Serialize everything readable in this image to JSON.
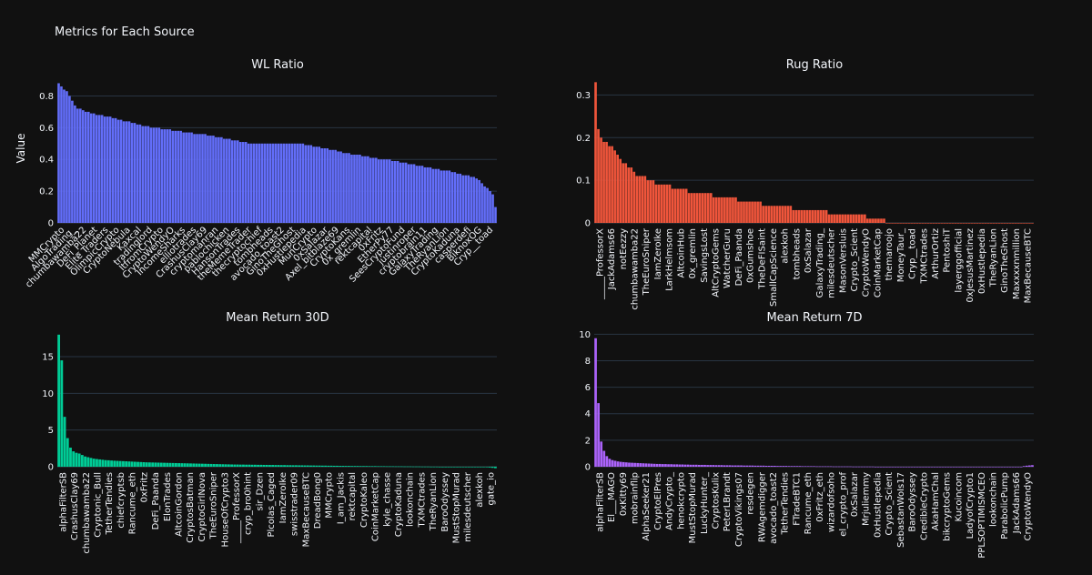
{
  "chart_data": {
    "title": "Metrics for Each Source",
    "ylabel": "Value",
    "panels": [
      {
        "type": "bar",
        "title": "WL Ratio",
        "color": "#636efa",
        "ylim": [
          0,
          0.9
        ],
        "yticks": [
          0,
          0.2,
          0.4,
          0.6,
          0.8
        ],
        "ytick_labels": [
          "0",
          "0.2",
          "0.4",
          "0.6",
          "0.8"
        ],
        "categories": [
          "MMCrypto",
          "AlgoTrading_",
          "chumbawamba22",
          "DeFi_Planet",
          "Elite Traders",
          "OlimpicCrypto",
          "CryptoNebula",
          "Kaxcal",
          "tradinglord",
          "ItfromCrypto",
          "CryptoWendyO",
          "IncomeSharks",
          "elliotrades",
          "CrashusClay69",
          "cryptomanran",
          "pablochicken",
          "HansonTrades",
          "theMemeTrader",
          "thecryptochief",
          "tombheads",
          "avocado_toast2",
          "GinoTheGhost",
          "0xHustlepedia",
          "MunCrypto",
          "0xSalazar",
          "Axel_bitblaze69",
          "CryptoKans",
          "0x_gremlin",
          "rektcapital",
          "0xFritz",
          "EtherPy77",
          "SeesCryptoFund",
          "justinroper",
          "cryptobrain11",
          "GalaxyTrading",
          "TheRyanLion",
          "CryptoKaduna",
          "casperdefi",
          "BiknoxOG",
          "Cryp__toad"
        ],
        "values": [
          0.88,
          0.86,
          0.84,
          0.83,
          0.8,
          0.77,
          0.74,
          0.72,
          0.72,
          0.71,
          0.7,
          0.7,
          0.69,
          0.69,
          0.68,
          0.68,
          0.68,
          0.67,
          0.67,
          0.67,
          0.66,
          0.66,
          0.65,
          0.65,
          0.64,
          0.64,
          0.64,
          0.63,
          0.63,
          0.62,
          0.62,
          0.61,
          0.61,
          0.61,
          0.6,
          0.6,
          0.6,
          0.6,
          0.59,
          0.59,
          0.59,
          0.59,
          0.58,
          0.58,
          0.58,
          0.58,
          0.57,
          0.57,
          0.57,
          0.57,
          0.56,
          0.56,
          0.56,
          0.56,
          0.56,
          0.55,
          0.55,
          0.55,
          0.54,
          0.54,
          0.54,
          0.53,
          0.53,
          0.53,
          0.52,
          0.52,
          0.52,
          0.51,
          0.51,
          0.51,
          0.5,
          0.5,
          0.5,
          0.5,
          0.5,
          0.5,
          0.5,
          0.5,
          0.5,
          0.5,
          0.5,
          0.5,
          0.5,
          0.5,
          0.5,
          0.5,
          0.5,
          0.5,
          0.5,
          0.5,
          0.5,
          0.49,
          0.49,
          0.49,
          0.48,
          0.48,
          0.48,
          0.47,
          0.47,
          0.47,
          0.46,
          0.46,
          0.46,
          0.45,
          0.45,
          0.44,
          0.44,
          0.44,
          0.43,
          0.43,
          0.43,
          0.43,
          0.42,
          0.42,
          0.42,
          0.41,
          0.41,
          0.41,
          0.4,
          0.4,
          0.4,
          0.4,
          0.4,
          0.39,
          0.39,
          0.39,
          0.38,
          0.38,
          0.38,
          0.37,
          0.37,
          0.37,
          0.36,
          0.36,
          0.36,
          0.35,
          0.35,
          0.35,
          0.34,
          0.34,
          0.34,
          0.33,
          0.33,
          0.33,
          0.33,
          0.32,
          0.32,
          0.31,
          0.31,
          0.3,
          0.3,
          0.3,
          0.29,
          0.29,
          0.28,
          0.27,
          0.25,
          0.23,
          0.22,
          0.2,
          0.18,
          0.1
        ]
      },
      {
        "type": "bar",
        "title": "Rug Ratio",
        "color": "#ef553b",
        "ylim": [
          0,
          0.335
        ],
        "yticks": [
          0,
          0.1,
          0.2,
          0.3
        ],
        "ytick_labels": [
          "0",
          "0.1",
          "0.2",
          "0.3"
        ],
        "categories": [
          "_____ProfessorX",
          "JackAdams66",
          "notEezzy",
          "chumbawamba22",
          "TheEuroSniper",
          "IamZeroIke",
          "LarkHelmsom",
          "AltcoinHub",
          "0x_gremlin",
          "SavingsLost",
          "AltCryptoGems",
          "WatcherGuru",
          "DeFi_Paanda",
          "0xGumshoe",
          "TheDeFISaint",
          "SmallCapScience",
          "alexkoh",
          "tombheads",
          "0xSalazar",
          "GalaxyTrading_",
          "milesdeutscher",
          "MasonVersluis",
          "Crypto_Scient",
          "CryptoWendyO",
          "CoinMarketCap",
          "themaroojo",
          "MoneyTaur_",
          "Cryp__toad",
          "TXMCtrades",
          "ArthurOrtiz",
          "PentoshiT",
          "layerggofficial",
          "0xJesusMartinez",
          "0xHustlepedia",
          "TheRyanLion",
          "GinoTheGhost",
          "Maxxxxnmillion",
          "MaxBecauseBTC"
        ],
        "values": [
          0.33,
          0.22,
          0.2,
          0.19,
          0.19,
          0.18,
          0.18,
          0.17,
          0.16,
          0.15,
          0.14,
          0.14,
          0.13,
          0.13,
          0.12,
          0.11,
          0.11,
          0.11,
          0.11,
          0.1,
          0.1,
          0.1,
          0.09,
          0.09,
          0.09,
          0.09,
          0.09,
          0.09,
          0.08,
          0.08,
          0.08,
          0.08,
          0.08,
          0.08,
          0.07,
          0.07,
          0.07,
          0.07,
          0.07,
          0.07,
          0.07,
          0.07,
          0.07,
          0.06,
          0.06,
          0.06,
          0.06,
          0.06,
          0.06,
          0.06,
          0.06,
          0.06,
          0.05,
          0.05,
          0.05,
          0.05,
          0.05,
          0.05,
          0.05,
          0.05,
          0.05,
          0.04,
          0.04,
          0.04,
          0.04,
          0.04,
          0.04,
          0.04,
          0.04,
          0.04,
          0.04,
          0.04,
          0.03,
          0.03,
          0.03,
          0.03,
          0.03,
          0.03,
          0.03,
          0.03,
          0.03,
          0.03,
          0.03,
          0.03,
          0.03,
          0.02,
          0.02,
          0.02,
          0.02,
          0.02,
          0.02,
          0.02,
          0.02,
          0.02,
          0.02,
          0.02,
          0.02,
          0.02,
          0.02,
          0.01,
          0.01,
          0.01,
          0.01,
          0.01,
          0.01,
          0.01,
          0,
          0,
          0,
          0,
          0,
          0,
          0,
          0,
          0,
          0,
          0,
          0,
          0,
          0,
          0,
          0,
          0,
          0,
          0,
          0,
          0,
          0,
          0,
          0,
          0,
          0,
          0,
          0,
          0,
          0,
          0,
          0,
          0,
          0,
          0,
          0,
          0,
          0,
          0,
          0,
          0,
          0,
          0,
          0,
          0,
          0,
          0,
          0,
          0,
          0,
          0,
          0,
          0,
          0
        ]
      },
      {
        "type": "bar",
        "title": "Mean Return 30D",
        "color": "#00cc96",
        "ylim": [
          0,
          18.6
        ],
        "yticks": [
          0,
          5,
          10,
          15
        ],
        "ytick_labels": [
          "0",
          "5",
          "10",
          "15"
        ],
        "categories": [
          "alphaFilterSB",
          "CrashusClay69",
          "chumbawamba22",
          "Cryptonic_Bull",
          "TetherTendies",
          "chiefcryptsb",
          "Rancume_eth",
          "0xFritz",
          "DeFi_Paanda",
          "ElonTrades",
          "AltcoinGordon",
          "CryptosBatman",
          "CryptoGirlNova",
          "TheEuroSniper",
          "HouseOfCrypto3",
          "_____ProfessorX",
          "cryp_bro0hint",
          "sir_Dzen",
          "Plcolas_Caged",
          "IamZeroIke",
          "swisstrader09",
          "MaxBecauseBTC",
          "DreadBong0",
          "MMCrypto",
          "I_am_Jackis",
          "rektcapital",
          "CryptoKaleo",
          "CoinMarketCap",
          "kyle_chasse",
          "CryptoKaduna",
          "lookonchain",
          "TXMCtrades",
          "TheRyanLion",
          "BaroOdyssey",
          "MustStopMurad",
          "milesdeutscher",
          "alexkoh",
          "gate_io"
        ],
        "values": [
          18,
          14.5,
          6.8,
          3.9,
          2.6,
          2.1,
          1.9,
          1.8,
          1.6,
          1.4,
          1.3,
          1.2,
          1.1,
          1.05,
          1,
          0.95,
          0.9,
          0.88,
          0.85,
          0.82,
          0.8,
          0.78,
          0.76,
          0.74,
          0.72,
          0.7,
          0.68,
          0.66,
          0.64,
          0.62,
          0.6,
          0.59,
          0.58,
          0.57,
          0.56,
          0.55,
          0.54,
          0.53,
          0.52,
          0.51,
          0.5,
          0.49,
          0.48,
          0.47,
          0.46,
          0.45,
          0.44,
          0.43,
          0.42,
          0.41,
          0.4,
          0.39,
          0.38,
          0.37,
          0.36,
          0.35,
          0.34,
          0.33,
          0.32,
          0.31,
          0.3,
          0.3,
          0.29,
          0.29,
          0.28,
          0.28,
          0.27,
          0.27,
          0.26,
          0.26,
          0.25,
          0.25,
          0.24,
          0.24,
          0.23,
          0.23,
          0.22,
          0.22,
          0.21,
          0.21,
          0.2,
          0.2,
          0.19,
          0.19,
          0.18,
          0.18,
          0.17,
          0.17,
          0.16,
          0.16,
          0.15,
          0.15,
          0.14,
          0.14,
          0.13,
          0.13,
          0.12,
          0.12,
          0.11,
          0.11,
          0.1,
          0.1,
          0.1,
          0.09,
          0.09,
          0.09,
          0.08,
          0.08,
          0.08,
          0.07,
          0.07,
          0.07,
          0.06,
          0.06,
          0.06,
          0.05,
          0.05,
          0.05,
          0.04,
          0.04,
          0.04,
          0.03,
          0.03,
          0.03,
          0.02,
          0.02,
          0.02,
          0.01,
          0.01,
          0.01,
          0,
          0,
          0,
          0,
          0,
          0,
          0,
          0,
          0,
          0,
          0,
          0,
          0,
          0,
          0,
          0,
          -0.05,
          -0.1,
          -0.15,
          -0.2
        ]
      },
      {
        "type": "bar",
        "title": "Mean Return 7D",
        "color": "#ab63fa",
        "ylim": [
          0,
          10.3
        ],
        "yticks": [
          0,
          2,
          4,
          6,
          8,
          10
        ],
        "ytick_labels": [
          "0",
          "2",
          "4",
          "6",
          "8",
          "10"
        ],
        "categories": [
          "alphaFilterSB",
          "El___MAGO",
          "0xKitty69",
          "mobrainflip",
          "AlphaSeeker21",
          "CryptoElPres",
          "AndyCrypto_",
          "henokcrypto",
          "MustStopMurad",
          "LuckyHunter_",
          "CryptosKulix",
          "PeterLBrandt",
          "CryptoVikings07",
          "resdegen",
          "RWAgemdigger",
          "avocado_toast2",
          "TetherTendies",
          "FTradeBTC1",
          "Rancume_eth",
          "0xFritz_eth",
          "wizardofsoho",
          "el_crypto_prof",
          "0xSalazar",
          "Mrjuliemmy",
          "0xHustlepedia",
          "Crypto_Scient",
          "SebastanWoIs17",
          "BaroOdyssey",
          "CredibleCrypto",
          "AkaHamChal",
          "bikcryptoGems",
          "Kucoincom",
          "LadyofCrypto1",
          "PPLSOPTIMISMCEO",
          "lookonchain",
          "ParabolicPump",
          "JackAdams66",
          "CryptoWendyO"
        ],
        "values": [
          9.7,
          4.8,
          1.9,
          1.2,
          0.8,
          0.6,
          0.5,
          0.45,
          0.4,
          0.37,
          0.35,
          0.33,
          0.31,
          0.3,
          0.29,
          0.28,
          0.27,
          0.26,
          0.25,
          0.24,
          0.23,
          0.22,
          0.21,
          0.21,
          0.2,
          0.2,
          0.19,
          0.19,
          0.18,
          0.18,
          0.17,
          0.17,
          0.16,
          0.16,
          0.15,
          0.15,
          0.15,
          0.14,
          0.14,
          0.14,
          0.13,
          0.13,
          0.13,
          0.12,
          0.12,
          0.12,
          0.11,
          0.11,
          0.11,
          0.1,
          0.1,
          0.1,
          0.1,
          0.09,
          0.09,
          0.09,
          0.09,
          0.08,
          0.08,
          0.08,
          0.08,
          0.07,
          0.07,
          0.07,
          0.07,
          0.06,
          0.06,
          0.06,
          0.06,
          0.05,
          0.05,
          0.05,
          0.05,
          0.05,
          0.04,
          0.04,
          0.04,
          0.04,
          0.04,
          0.03,
          0.03,
          0.03,
          0.03,
          0.03,
          0.03,
          0.02,
          0.02,
          0.02,
          0.02,
          0.02,
          0.02,
          0.02,
          0.01,
          0.01,
          0.01,
          0.01,
          0.01,
          0.01,
          0.01,
          0.01,
          0,
          0,
          0,
          0,
          0,
          0,
          0,
          0,
          0,
          0,
          0,
          0,
          0,
          0,
          0,
          0,
          0,
          0,
          0,
          0,
          0,
          0,
          0,
          0,
          0,
          0,
          0,
          0,
          0,
          0,
          0,
          0,
          0,
          0,
          0,
          0,
          0,
          0,
          0,
          0,
          0,
          0,
          0,
          0,
          0,
          0,
          0,
          0,
          0,
          0,
          0,
          0,
          0,
          0.05,
          0.08,
          0.1,
          0.12
        ]
      }
    ]
  }
}
